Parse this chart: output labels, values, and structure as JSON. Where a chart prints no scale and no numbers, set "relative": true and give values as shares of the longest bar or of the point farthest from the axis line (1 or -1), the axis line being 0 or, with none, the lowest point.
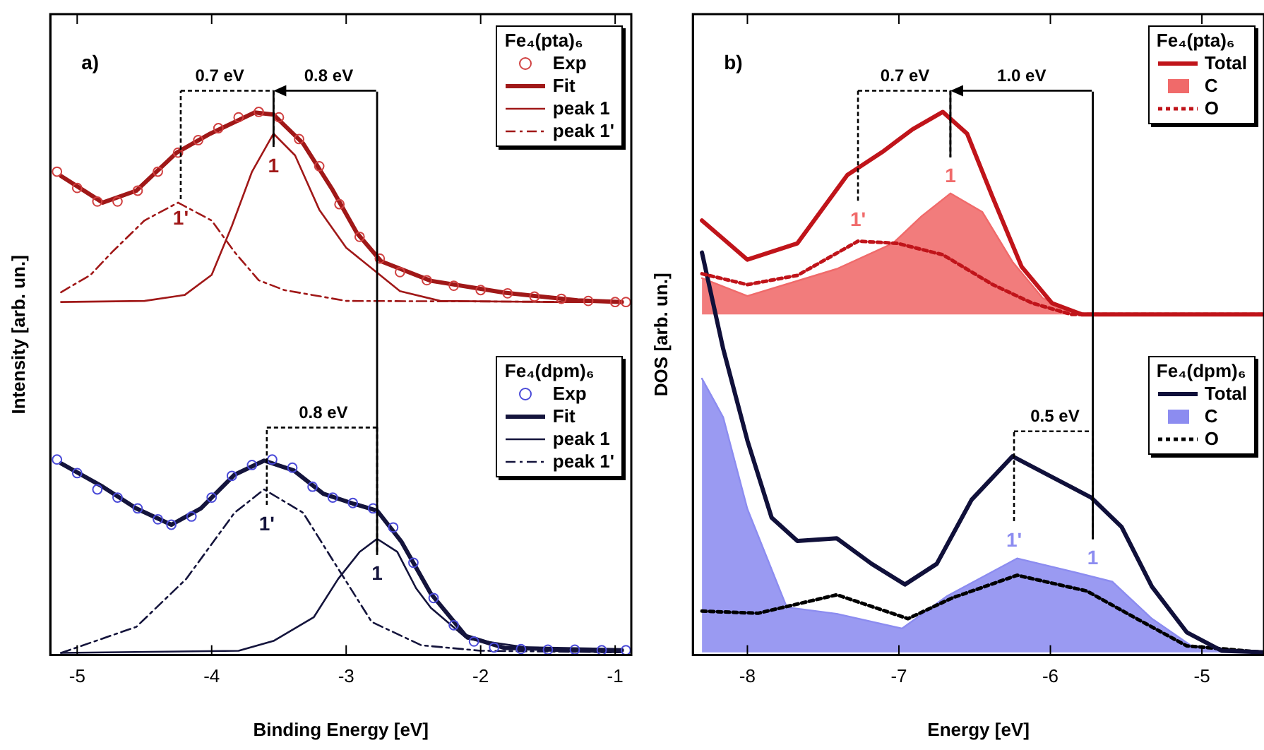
{
  "chart_data": [
    {
      "type": "line",
      "title": "a)",
      "xlabel": "Binding Energy [eV]",
      "ylabel": "Intensity [arb. un.]",
      "relative": true,
      "xlim": [
        -5.2,
        -0.88
      ],
      "xticks": [
        -5,
        -4,
        -3,
        -2,
        -1
      ],
      "legend": "top right",
      "legend_title": "Fe₄(pta)₆",
      "annotations": [
        "0.7 eV",
        "0.8 eV",
        "0.8 eV",
        "1'",
        "1",
        "1'",
        "1",
        "Fe₄(dpm)₆"
      ],
      "series": [
        {
          "name": "Exp",
          "type": "scatter",
          "marker": "circle",
          "color": "#d04040",
          "x": [
            -5.15,
            -5.0,
            -4.85,
            -4.7,
            -4.55,
            -4.4,
            -4.25,
            -4.1,
            -3.95,
            -3.8,
            -3.65,
            -3.5,
            -3.35,
            -3.2,
            -3.05,
            -2.9,
            -2.75,
            -2.6,
            -2.4,
            -2.2,
            -2.0,
            -1.8,
            -1.6,
            -1.4,
            -1.2,
            -1.0,
            -0.92
          ],
          "values": [
            0.89,
            0.86,
            0.835,
            0.835,
            0.855,
            0.89,
            0.925,
            0.948,
            0.97,
            0.99,
            1.0,
            0.99,
            0.95,
            0.9,
            0.83,
            0.77,
            0.73,
            0.705,
            0.69,
            0.68,
            0.672,
            0.666,
            0.66,
            0.656,
            0.652,
            0.65,
            0.65
          ]
        },
        {
          "name": "Fit",
          "type": "line",
          "color": "#a01818",
          "x": [
            -5.12,
            -4.81,
            -4.56,
            -4.26,
            -4.01,
            -3.68,
            -3.54,
            -3.32,
            -3.1,
            -2.92,
            -2.74,
            -2.37,
            -1.82,
            -1.28,
            -0.95
          ],
          "values": [
            0.882,
            0.833,
            0.855,
            0.925,
            0.96,
            0.999,
            0.995,
            0.942,
            0.856,
            0.777,
            0.725,
            0.689,
            0.667,
            0.653,
            0.65
          ]
        },
        {
          "name": "peak 1",
          "type": "line",
          "line_style": "solid",
          "color": "#a01818",
          "x": [
            -5.12,
            -4.5,
            -4.2,
            -4.0,
            -3.85,
            -3.7,
            -3.54,
            -3.38,
            -3.2,
            -3.0,
            -2.8,
            -2.6,
            -2.3,
            -1.5,
            -0.95
          ],
          "values": [
            0.65,
            0.652,
            0.663,
            0.7,
            0.79,
            0.89,
            0.96,
            0.92,
            0.82,
            0.75,
            0.71,
            0.67,
            0.652,
            0.65,
            0.65
          ]
        },
        {
          "name": "peak 1'",
          "type": "line",
          "line_style": "dashed",
          "color": "#a01818",
          "x": [
            -5.12,
            -4.9,
            -4.74,
            -4.5,
            -4.25,
            -4.0,
            -3.83,
            -3.65,
            -3.46,
            -3.0,
            -0.95
          ],
          "values": [
            0.668,
            0.7,
            0.742,
            0.8,
            0.833,
            0.8,
            0.742,
            0.69,
            0.672,
            0.652,
            0.65
          ]
        },
        {
          "name": "Exp",
          "type": "scatter",
          "marker": "circle",
          "color": "#4a4ad8",
          "x": [
            -5.15,
            -5.0,
            -4.85,
            -4.7,
            -4.55,
            -4.4,
            -4.3,
            -4.15,
            -4.0,
            -3.85,
            -3.7,
            -3.55,
            -3.4,
            -3.25,
            -3.1,
            -2.95,
            -2.8,
            -2.65,
            -2.5,
            -2.35,
            -2.2,
            -2.05,
            -1.9,
            -1.7,
            -1.5,
            -1.3,
            -1.1,
            -0.92
          ],
          "values": [
            0.36,
            0.335,
            0.305,
            0.29,
            0.27,
            0.25,
            0.24,
            0.255,
            0.29,
            0.33,
            0.35,
            0.36,
            0.345,
            0.31,
            0.29,
            0.28,
            0.27,
            0.235,
            0.17,
            0.105,
            0.055,
            0.025,
            0.014,
            0.011,
            0.01,
            0.01,
            0.009,
            0.009
          ]
        },
        {
          "name": "Fit",
          "type": "line",
          "color": "#14143c",
          "x": [
            -5.12,
            -4.81,
            -4.56,
            -4.3,
            -4.08,
            -3.83,
            -3.61,
            -3.39,
            -3.17,
            -2.95,
            -2.77,
            -2.59,
            -2.37,
            -2.11,
            -1.82,
            -0.95
          ],
          "values": [
            0.353,
            0.31,
            0.27,
            0.24,
            0.27,
            0.332,
            0.358,
            0.34,
            0.297,
            0.279,
            0.266,
            0.209,
            0.113,
            0.035,
            0.013,
            0.009
          ]
        },
        {
          "name": "peak 1",
          "type": "line",
          "line_style": "solid",
          "color": "#14143c",
          "x": [
            -5.12,
            -3.8,
            -3.54,
            -3.24,
            -3.06,
            -2.9,
            -2.77,
            -2.62,
            -2.48,
            -2.37,
            -2.1,
            -1.5,
            -0.95
          ],
          "values": [
            0.004,
            0.008,
            0.026,
            0.07,
            0.14,
            0.19,
            0.214,
            0.19,
            0.123,
            0.087,
            0.03,
            0.008,
            0.005
          ]
        },
        {
          "name": "peak 1'",
          "type": "line",
          "line_style": "dashed",
          "color": "#14143c",
          "x": [
            -5.12,
            -4.56,
            -4.19,
            -3.83,
            -3.61,
            -3.32,
            -3.1,
            -2.81,
            -2.44,
            -2.0,
            -0.95
          ],
          "values": [
            0.004,
            0.052,
            0.14,
            0.262,
            0.305,
            0.262,
            0.175,
            0.061,
            0.018,
            0.008,
            0.005
          ]
        }
      ]
    },
    {
      "type": "line",
      "title": "b)",
      "xlabel": "Energy [eV]",
      "ylabel": "DOS [arb. un.]",
      "relative": true,
      "xlim": [
        -8.36,
        -4.59
      ],
      "xticks": [
        -8,
        -7,
        -6,
        -5
      ],
      "legend": "top right",
      "legend_title": "Fe₄(pta)₆",
      "annotations": [
        "0.7 eV",
        "1.0 eV",
        "0.5 eV",
        "1'",
        "1",
        "1'",
        "1",
        "Fe₄(dpm)₆"
      ],
      "series": [
        {
          "name": "Total",
          "type": "line",
          "color": "#c0141a",
          "x": [
            -8.3,
            -8.0,
            -7.67,
            -7.34,
            -7.11,
            -6.91,
            -6.71,
            -6.55,
            -6.38,
            -6.19,
            -5.99,
            -5.79,
            -4.59
          ],
          "values": [
            0.8,
            0.728,
            0.758,
            0.884,
            0.926,
            0.968,
            1.0,
            0.96,
            0.842,
            0.715,
            0.648,
            0.627,
            0.627
          ]
        },
        {
          "name": "C",
          "type": "area",
          "color": "#f06a6a",
          "x": [
            -8.3,
            -8.0,
            -7.41,
            -7.04,
            -6.85,
            -6.66,
            -6.45,
            -6.25,
            -6.05,
            -5.79,
            -4.59
          ],
          "values": [
            0.694,
            0.661,
            0.711,
            0.758,
            0.808,
            0.85,
            0.816,
            0.724,
            0.657,
            0.627,
            0.627
          ]
        },
        {
          "name": "O",
          "type": "line",
          "line_style": "dotted",
          "color": "#c0141a",
          "x": [
            -8.3,
            -8.0,
            -7.67,
            -7.27,
            -7.01,
            -6.71,
            -6.38,
            -6.12,
            -5.86,
            -4.59
          ],
          "values": [
            0.702,
            0.682,
            0.699,
            0.762,
            0.758,
            0.737,
            0.682,
            0.648,
            0.627,
            0.627
          ]
        },
        {
          "name": "Total",
          "type": "line",
          "color": "#10103a",
          "x": [
            -8.3,
            -8.16,
            -8.0,
            -7.84,
            -7.67,
            -7.41,
            -7.18,
            -6.96,
            -6.75,
            -6.52,
            -6.25,
            -5.99,
            -5.73,
            -5.53,
            -5.33,
            -5.1,
            -4.87,
            -4.59
          ],
          "values": [
            0.741,
            0.564,
            0.395,
            0.253,
            0.21,
            0.215,
            0.168,
            0.13,
            0.168,
            0.286,
            0.366,
            0.328,
            0.29,
            0.236,
            0.126,
            0.042,
            0.008,
            0.005
          ]
        },
        {
          "name": "C",
          "type": "area",
          "color": "#8c8cf0",
          "x": [
            -8.3,
            -8.16,
            -8.0,
            -7.74,
            -7.41,
            -6.98,
            -6.68,
            -6.22,
            -5.89,
            -5.59,
            -5.33,
            -5.07,
            -4.59
          ],
          "values": [
            0.509,
            0.438,
            0.269,
            0.088,
            0.076,
            0.049,
            0.109,
            0.178,
            0.156,
            0.135,
            0.067,
            0.017,
            0.005
          ]
        },
        {
          "name": "O",
          "type": "line",
          "line_style": "dotted",
          "color": "#000000",
          "x": [
            -8.3,
            -7.93,
            -7.41,
            -6.94,
            -6.65,
            -6.22,
            -5.76,
            -5.43,
            -5.1,
            -4.59
          ],
          "values": [
            0.081,
            0.077,
            0.111,
            0.067,
            0.105,
            0.147,
            0.118,
            0.067,
            0.017,
            0.005
          ]
        }
      ]
    }
  ]
}
